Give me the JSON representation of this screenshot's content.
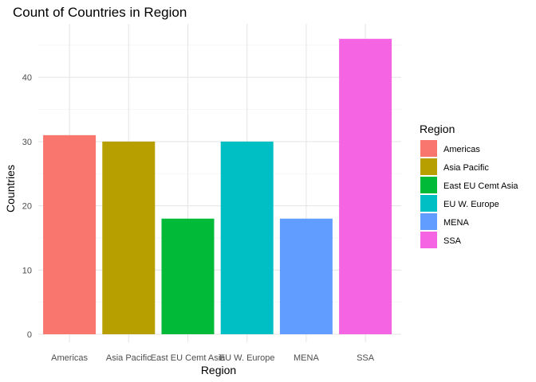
{
  "chart_data": {
    "type": "bar",
    "title": "Count of Countries in Region",
    "xlabel": "Region",
    "ylabel": "Countries",
    "categories": [
      "Americas",
      "Asia Pacific",
      "East EU Cemt Asia",
      "EU W. Europe",
      "MENA",
      "SSA"
    ],
    "values": [
      31,
      30,
      18,
      30,
      18,
      46
    ],
    "colors": [
      "#F8766D",
      "#B79F00",
      "#00BA38",
      "#00BFC4",
      "#619CFF",
      "#F564E3"
    ],
    "ylim": [
      0,
      48
    ],
    "yticks": [
      0,
      10,
      20,
      30,
      40
    ],
    "grid": true,
    "legend": {
      "title": "Region",
      "position": "right",
      "entries": [
        "Americas",
        "Asia Pacific",
        "East EU Cemt Asia",
        "EU W. Europe",
        "MENA",
        "SSA"
      ]
    }
  }
}
